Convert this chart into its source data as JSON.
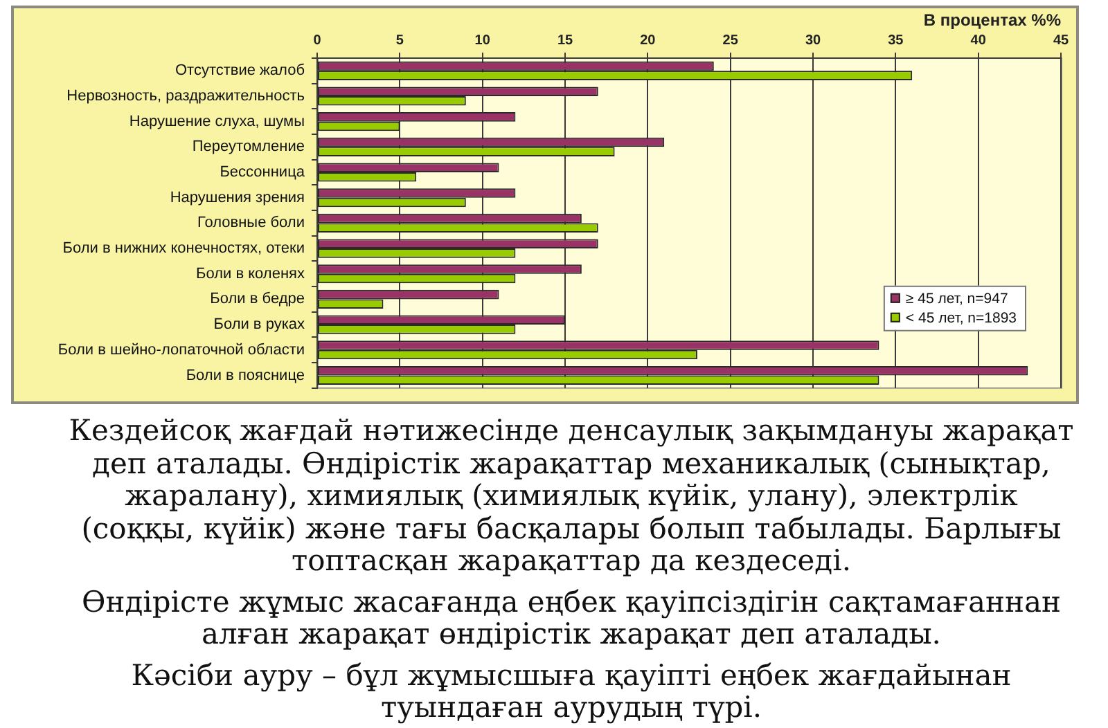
{
  "chart_data": {
    "type": "bar",
    "orientation": "horizontal",
    "xlabel": "В процентах %%",
    "categories": [
      "Отсутствие жалоб",
      "Нервозность, раздражительность",
      "Нарушение слуха, шумы",
      "Переутомление",
      "Бессонница",
      "Нарушения зрения",
      "Головные боли",
      "Боли в нижних конечностях, отеки",
      "Боли в коленях",
      "Боли в бедре",
      "Боли в руках",
      "Боли в шейно-лопаточной области",
      "Боли в пояснице"
    ],
    "series": [
      {
        "name": "≥ 45 лет, n=947",
        "color": "#993366",
        "values": [
          24,
          17,
          12,
          21,
          11,
          12,
          16,
          17,
          16,
          11,
          15,
          34,
          43
        ]
      },
      {
        "name": "< 45 лет, n=1893",
        "color": "#99cc00",
        "values": [
          36,
          9,
          5,
          18,
          6,
          9,
          17,
          12,
          12,
          4,
          12,
          23,
          34
        ]
      }
    ],
    "xlim": [
      0,
      45
    ],
    "xticks": [
      0,
      5,
      10,
      15,
      20,
      25,
      30,
      35,
      40,
      45
    ],
    "grid": "x",
    "legend": "bottom right",
    "annotations": [
      "Кездейсоқ жағдай нәтижесінде денсаулық зақымдануы жарақат деп аталады. Өндірістік жарақаттар механикалық (сынықтар, жаралану), химиялық (химиялық күйік, улану), электрлік (соққы, күйік) және тағы басқалары болып табылады. Барлығы топтасқан жарақаттар да кездеседі.",
      "Өндірісте жұмыс жасағанда еңбек қауіпсіздігін сақтамағаннан алған жарақат өндірістік жарақат деп аталады.",
      "Кәсіби ауру – бұл жұмысшыға қауіпті еңбек жағдайынан туындаған аурудың түрі."
    ]
  }
}
